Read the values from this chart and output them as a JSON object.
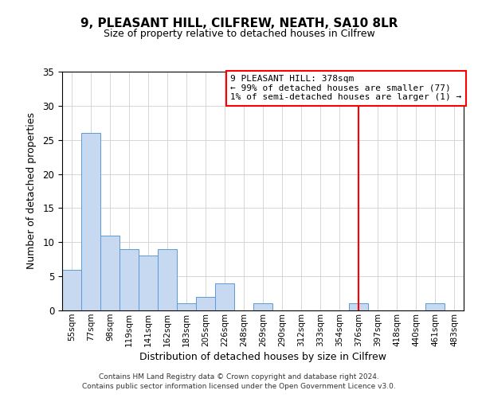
{
  "title": "9, PLEASANT HILL, CILFREW, NEATH, SA10 8LR",
  "subtitle": "Size of property relative to detached houses in Cilfrew",
  "xlabel": "Distribution of detached houses by size in Cilfrew",
  "ylabel": "Number of detached properties",
  "bar_labels": [
    "55sqm",
    "77sqm",
    "98sqm",
    "119sqm",
    "141sqm",
    "162sqm",
    "183sqm",
    "205sqm",
    "226sqm",
    "248sqm",
    "269sqm",
    "290sqm",
    "312sqm",
    "333sqm",
    "354sqm",
    "376sqm",
    "397sqm",
    "418sqm",
    "440sqm",
    "461sqm",
    "483sqm"
  ],
  "bar_values": [
    6,
    26,
    11,
    9,
    8,
    9,
    1,
    2,
    4,
    0,
    1,
    0,
    0,
    0,
    0,
    1,
    0,
    0,
    0,
    1,
    0
  ],
  "bar_color": "#c6d9f1",
  "bar_edge_color": "#5b9bd5",
  "ylim": [
    0,
    35
  ],
  "yticks": [
    0,
    5,
    10,
    15,
    20,
    25,
    30,
    35
  ],
  "vline_x_index": 15,
  "vline_color": "#ff0000",
  "annotation_title": "9 PLEASANT HILL: 378sqm",
  "annotation_line1": "← 99% of detached houses are smaller (77)",
  "annotation_line2": "1% of semi-detached houses are larger (1) →",
  "annotation_box_color": "#ff0000",
  "annotation_fill": "#ffffff",
  "footer_line1": "Contains HM Land Registry data © Crown copyright and database right 2024.",
  "footer_line2": "Contains public sector information licensed under the Open Government Licence v3.0.",
  "background_color": "#ffffff",
  "grid_color": "#d0d0d0"
}
